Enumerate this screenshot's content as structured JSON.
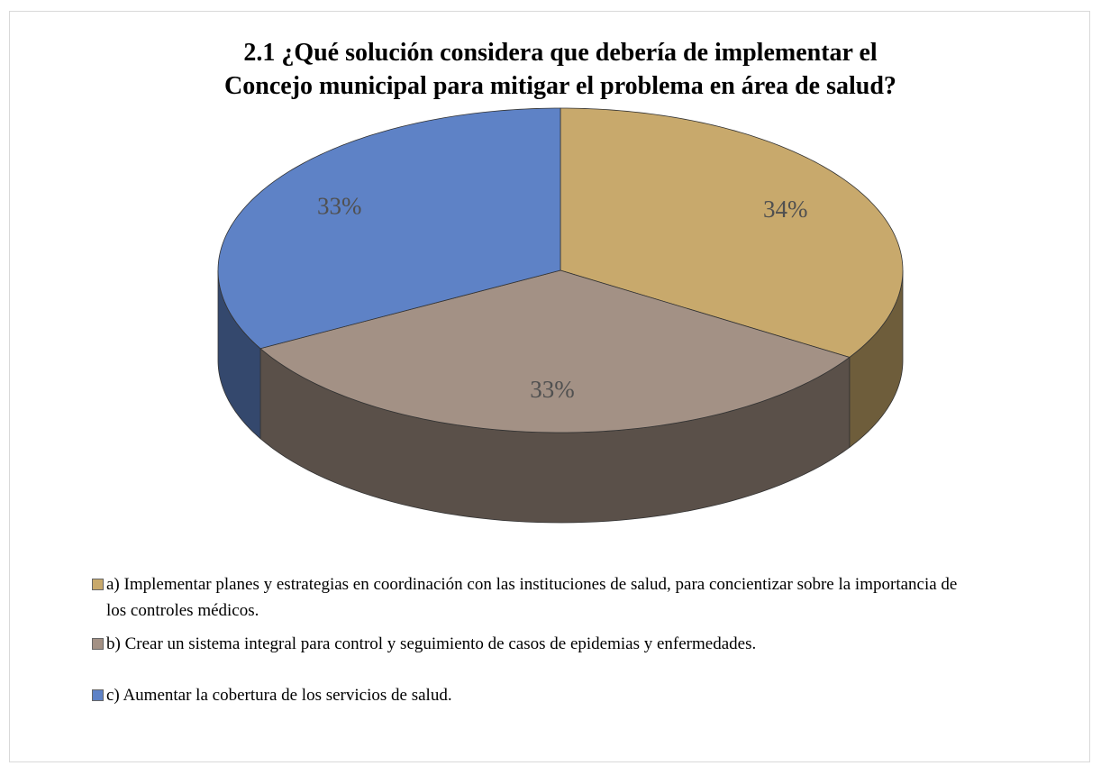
{
  "chart_data": {
    "type": "pie",
    "title": "2.1 ¿Qué solución considera que debería de implementar el Concejo municipal para mitigar el problema en área de salud?",
    "categories": [
      "a) Implementar planes y estrategias en coordinación con las instituciones de salud, para concientizar sobre la importancia de los controles médicos.",
      "b) Crear un sistema integral  para  control y seguimiento de  casos de epidemias y enfermedades.",
      "c) Aumentar la cobertura de los servicios de salud."
    ],
    "values": [
      34,
      33,
      33
    ],
    "value_labels": [
      "34%",
      "33%",
      "33%"
    ],
    "colors": [
      "#c8a96c",
      "#a39185",
      "#5e82c6"
    ],
    "legend": "bottom"
  }
}
